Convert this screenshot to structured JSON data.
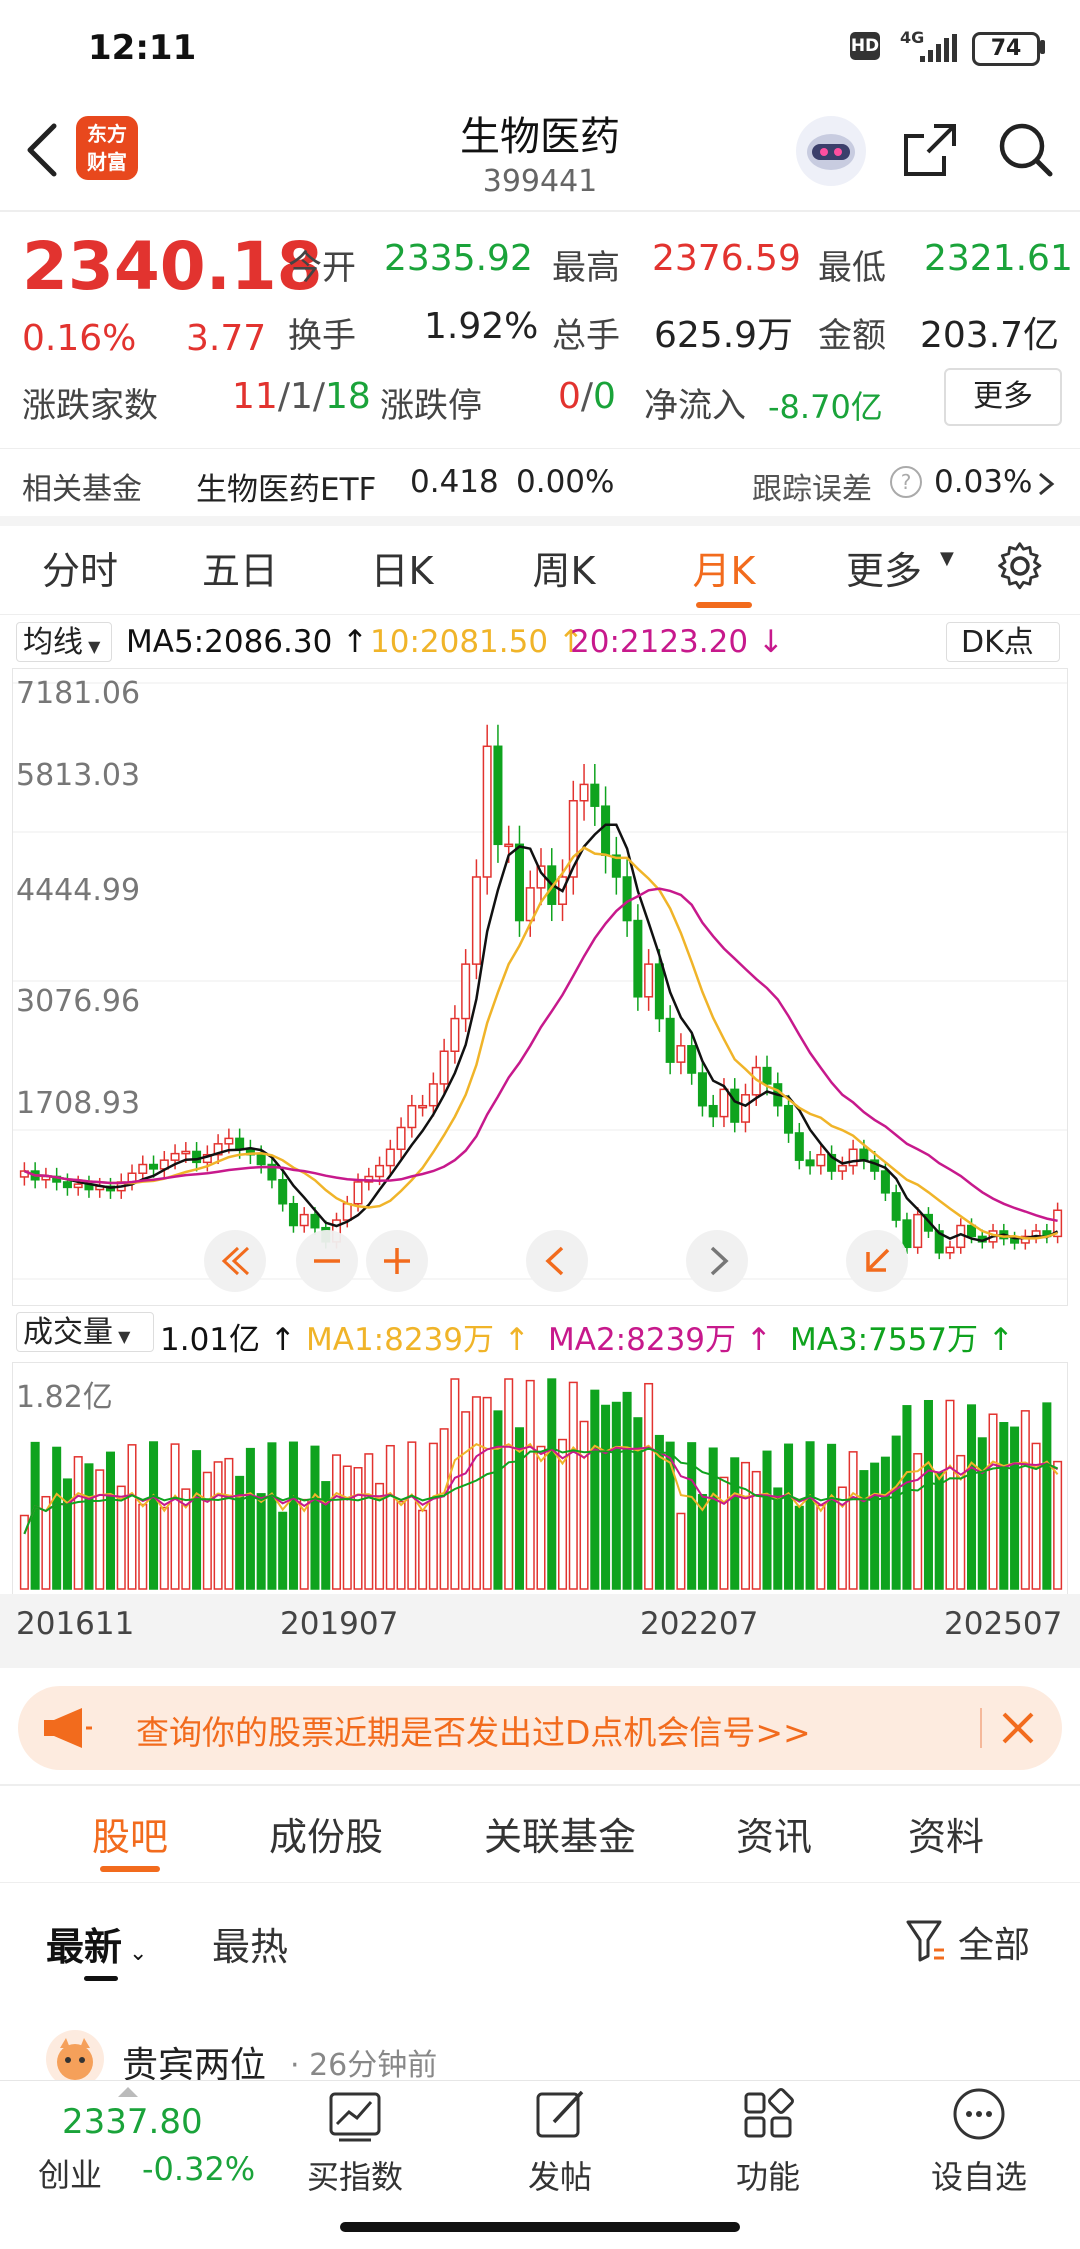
{
  "status": {
    "time": "12:11",
    "hd": "HD",
    "network": "4G",
    "battery": "74"
  },
  "header": {
    "logo_line1": "东方",
    "logo_line2": "财富",
    "title": "生物医药",
    "code": "399441"
  },
  "quote": {
    "price": "2340.18",
    "change_pct": "0.16%",
    "change": "3.77",
    "open_label": "今开",
    "open": "2335.92",
    "high_label": "最高",
    "high": "2376.59",
    "low_label": "最低",
    "low": "2321.61",
    "turnover_label": "换手",
    "turnover": "1.92%",
    "volume_label": "总手",
    "volume": "625.9万",
    "amount_label": "金额",
    "amount": "203.7亿",
    "adv_label": "涨跌家数",
    "adv_up": "11",
    "adv_flat": "1",
    "adv_down": "18",
    "limit_label": "涨跌停",
    "limit_up": "0",
    "limit_down": "0",
    "inflow_label": "净流入",
    "inflow": "-8.70亿",
    "more": "更多"
  },
  "fund": {
    "label": "相关基金",
    "name": "生物医药ETF",
    "price": "0.418",
    "pct": "0.00%",
    "err_label": "跟踪误差",
    "err": "0.03%"
  },
  "tabs": {
    "items": [
      "分时",
      "五日",
      "日K",
      "周K",
      "月K",
      "更多"
    ],
    "active": "月K"
  },
  "ma": {
    "selector": "均线",
    "ma5": "MA5:2086.30",
    "ma10": "10:2081.50",
    "ma20": "20:2123.20",
    "dk": "DK点"
  },
  "colors": {
    "up": "#e2332f",
    "down": "#0fa31e",
    "ma5": "#111111",
    "ma10": "#f0b429",
    "ma20": "#c7198c",
    "accent": "#f26b1d"
  },
  "chart_data": [
    {
      "type": "candlestick",
      "period": "monthly",
      "y_ticks": [
        "7181.06",
        "5813.03",
        "4444.99",
        "3076.96",
        "1708.93"
      ],
      "ylim": [
        1708.93,
        7181.06
      ],
      "x_ticks": [
        "201611",
        "201907",
        "202207",
        "202507"
      ],
      "series": [
        {
          "name": "MA5",
          "last": 2086.3
        },
        {
          "name": "MA10",
          "last": 2081.5
        },
        {
          "name": "MA20",
          "last": 2123.2
        }
      ],
      "close": [
        2700,
        2620,
        2650,
        2600,
        2550,
        2580,
        2530,
        2560,
        2520,
        2600,
        2680,
        2760,
        2720,
        2800,
        2860,
        2880,
        2780,
        2850,
        2950,
        3000,
        2900,
        2850,
        2760,
        2620,
        2400,
        2200,
        2300,
        2180,
        2050,
        2250,
        2400,
        2600,
        2650,
        2750,
        2900,
        3100,
        3300,
        3300,
        3500,
        3800,
        4100,
        4600,
        5400,
        6600,
        5700,
        5700,
        5000,
        5300,
        5500,
        5150,
        5400,
        6100,
        6250,
        6050,
        5600,
        5400,
        5000,
        4300,
        4600,
        4100,
        3700,
        3850,
        3600,
        3300,
        3200,
        3450,
        3150,
        3400,
        3650,
        3500,
        3300,
        3050,
        2800,
        2750,
        2850,
        2700,
        2750,
        2900,
        2800,
        2700,
        2500,
        2250,
        2000,
        2300,
        2150,
        1950,
        2000,
        2200,
        2100,
        2050,
        2150,
        2080,
        2040,
        2100,
        2150,
        2100,
        2340
      ]
    },
    {
      "type": "bar",
      "title": "成交量",
      "current": "1.01亿",
      "series": [
        {
          "name": "MA1",
          "last": "8239万"
        },
        {
          "name": "MA2",
          "last": "8239万"
        },
        {
          "name": "MA3",
          "last": "7557万"
        }
      ],
      "y_ticks": [
        "1.82亿"
      ],
      "ylim": [
        0,
        1.82
      ]
    }
  ],
  "volume": {
    "selector": "成交量",
    "current": "1.01亿",
    "ma1": "MA1:8239万",
    "ma2": "MA2:8239万",
    "ma3": "MA3:7557万",
    "ymax": "1.82亿"
  },
  "xaxis": [
    "201611",
    "201907",
    "202207",
    "202507"
  ],
  "banner": {
    "text": "查询你的股票近期是否发出过D点机会信号>>"
  },
  "subtabs": {
    "items": [
      "股吧",
      "成份股",
      "关联基金",
      "资讯",
      "资料"
    ],
    "active": "股吧"
  },
  "filter": {
    "latest": "最新",
    "hot": "最热",
    "all": "全部"
  },
  "post": {
    "user": "贵宾两位",
    "time": "26分钟前"
  },
  "bottom": {
    "index_price": "2337.80",
    "index_name": "创业",
    "index_pct": "-0.32%",
    "buy": "买指数",
    "post": "发帖",
    "func": "功能",
    "watch": "设自选"
  }
}
